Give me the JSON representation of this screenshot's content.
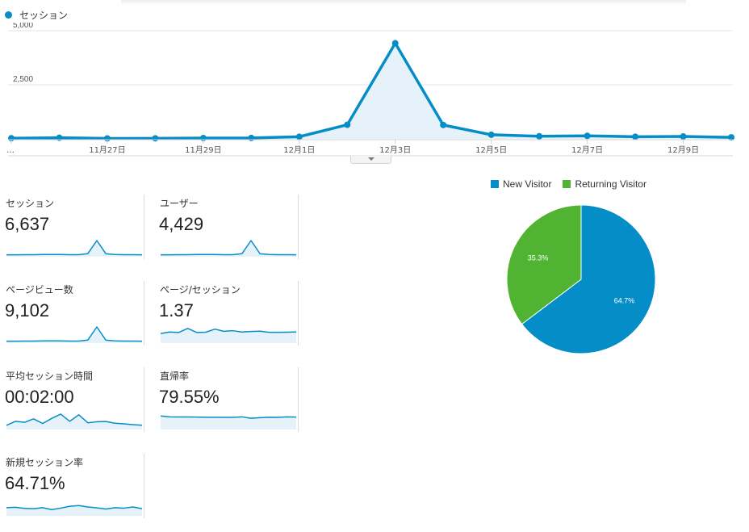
{
  "header": {
    "series_label": "セッション",
    "series_color": "#058dc7",
    "collapse_icon": "chevron-down-icon"
  },
  "chart_data": [
    {
      "type": "area",
      "series": [
        {
          "name": "セッション",
          "color": "#058dc7",
          "values": [
            30,
            50,
            20,
            25,
            35,
            40,
            100,
            650,
            4420,
            640,
            190,
            120,
            140,
            100,
            110,
            70
          ]
        }
      ],
      "y_ticks": [
        "5,000",
        "2,500"
      ],
      "ylim": [
        0,
        5000
      ],
      "x_tick_labels": [
        {
          "index": 0,
          "label": "…"
        },
        {
          "index": 2,
          "label": "11月27日"
        },
        {
          "index": 4,
          "label": "11月29日"
        },
        {
          "index": 6,
          "label": "12月1日"
        },
        {
          "index": 8,
          "label": "12月3日"
        },
        {
          "index": 10,
          "label": "12月5日"
        },
        {
          "index": 12,
          "label": "12月7日"
        },
        {
          "index": 14,
          "label": "12月9日"
        }
      ],
      "grid": true
    },
    {
      "type": "pie",
      "slices": [
        {
          "name": "New Visitor",
          "value": 64.7,
          "label": "64.7%",
          "color": "#058dc7"
        },
        {
          "name": "Returning Visitor",
          "value": 35.3,
          "label": "35.3%",
          "color": "#50b432"
        }
      ],
      "legend_position": "top"
    }
  ],
  "metrics": [
    {
      "label": "セッション",
      "value": "6,637",
      "spark": [
        2,
        2,
        3,
        3,
        4,
        4,
        4,
        3,
        3,
        10,
        100,
        9,
        4,
        3,
        3,
        2
      ]
    },
    {
      "label": "ユーザー",
      "value": "4,429",
      "spark": [
        2,
        2,
        3,
        3,
        4,
        4,
        4,
        3,
        3,
        10,
        100,
        9,
        4,
        3,
        3,
        2
      ]
    },
    {
      "label": "ページビュー数",
      "value": "9,102",
      "spark": [
        2,
        2,
        3,
        3,
        4,
        4,
        4,
        3,
        3,
        10,
        100,
        9,
        4,
        3,
        3,
        2
      ]
    },
    {
      "label": "ページ/セッション",
      "value": "1.37",
      "spark": [
        55,
        65,
        62,
        90,
        62,
        64,
        85,
        70,
        74,
        65,
        69,
        71,
        63,
        63,
        64,
        66
      ]
    },
    {
      "label": "平均セッション時間",
      "value": "00:02:00",
      "spark": [
        18,
        45,
        38,
        62,
        30,
        65,
        95,
        45,
        90,
        35,
        42,
        44,
        32,
        28,
        22,
        18
      ]
    },
    {
      "label": "直帰率",
      "value": "79.55%",
      "spark": [
        82,
        76,
        75,
        75,
        74,
        73,
        73,
        72,
        72,
        76,
        66,
        70,
        73,
        72,
        76,
        74
      ]
    },
    {
      "label": "新規セッション率",
      "value": "64.71%",
      "spark": [
        45,
        48,
        40,
        38,
        45,
        32,
        42,
        55,
        60,
        50,
        44,
        36,
        45,
        42,
        50,
        38
      ]
    }
  ]
}
